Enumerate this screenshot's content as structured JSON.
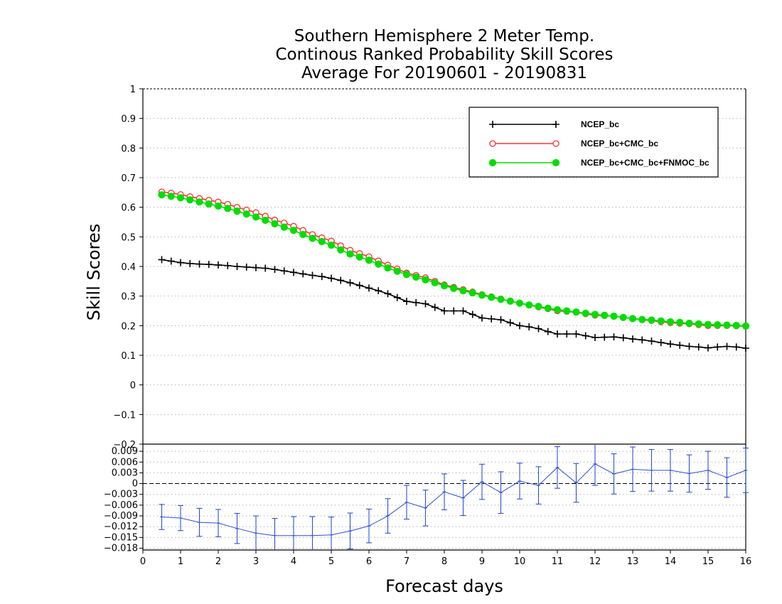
{
  "chart_data": {
    "type": "line",
    "title": [
      "Southern Hemisphere 2 Meter Temp.",
      "Continous Ranked Probability Skill Scores",
      "Average For 20190601 - 20190831"
    ],
    "xlabel": "Forecast days",
    "ylabel": "Skill Scores",
    "xlim": [
      0,
      16
    ],
    "ylim": [
      -0.2,
      1
    ],
    "x_ticks": [
      "0",
      "1",
      "2",
      "3",
      "4",
      "5",
      "6",
      "7",
      "8",
      "9",
      "10",
      "11",
      "12",
      "13",
      "14",
      "15",
      "16"
    ],
    "y_ticks": [
      "-0.2",
      "-0.1",
      "0",
      "0.1",
      "0.2",
      "0.3",
      "0.4",
      "0.5",
      "0.6",
      "0.7",
      "0.8",
      "0.9",
      "1"
    ],
    "grid": true,
    "legend_position": "top-right",
    "x": [
      0.5,
      0.75,
      1,
      1.25,
      1.5,
      1.75,
      2,
      2.25,
      2.5,
      2.75,
      3,
      3.25,
      3.5,
      3.75,
      4,
      4.25,
      4.5,
      4.75,
      5,
      5.25,
      5.5,
      5.75,
      6,
      6.25,
      6.5,
      6.75,
      7,
      7.25,
      7.5,
      7.75,
      8,
      8.25,
      8.5,
      8.75,
      9,
      9.25,
      9.5,
      9.75,
      10,
      10.25,
      10.5,
      10.75,
      11,
      11.25,
      11.5,
      11.75,
      12,
      12.25,
      12.5,
      12.75,
      13,
      13.25,
      13.5,
      13.75,
      14,
      14.25,
      14.5,
      14.75,
      15,
      15.25,
      15.5,
      15.75,
      16
    ],
    "series": [
      {
        "name": "NCEP_bc",
        "color": "#000000",
        "marker": "plus",
        "values": [
          0.423,
          0.418,
          0.413,
          0.41,
          0.408,
          0.407,
          0.405,
          0.403,
          0.4,
          0.398,
          0.396,
          0.394,
          0.39,
          0.385,
          0.38,
          0.375,
          0.37,
          0.366,
          0.36,
          0.353,
          0.345,
          0.336,
          0.327,
          0.318,
          0.308,
          0.295,
          0.282,
          0.278,
          0.274,
          0.262,
          0.25,
          0.25,
          0.25,
          0.238,
          0.226,
          0.223,
          0.22,
          0.21,
          0.2,
          0.196,
          0.19,
          0.18,
          0.172,
          0.172,
          0.172,
          0.166,
          0.16,
          0.161,
          0.162,
          0.159,
          0.155,
          0.152,
          0.148,
          0.143,
          0.138,
          0.134,
          0.13,
          0.128,
          0.125,
          0.128,
          0.13,
          0.128,
          0.124
        ]
      },
      {
        "name": "NCEP_bc+CMC_bc",
        "color": "#ff3030",
        "marker": "open-circle",
        "values": [
          0.652,
          0.648,
          0.643,
          0.636,
          0.63,
          0.624,
          0.618,
          0.61,
          0.6,
          0.591,
          0.582,
          0.57,
          0.557,
          0.547,
          0.536,
          0.522,
          0.508,
          0.497,
          0.486,
          0.47,
          0.455,
          0.444,
          0.433,
          0.419,
          0.405,
          0.392,
          0.378,
          0.37,
          0.362,
          0.35,
          0.338,
          0.33,
          0.322,
          0.314,
          0.305,
          0.298,
          0.29,
          0.283,
          0.276,
          0.27,
          0.263,
          0.257,
          0.25,
          0.248,
          0.245,
          0.24,
          0.235,
          0.234,
          0.232,
          0.228,
          0.224,
          0.22,
          0.217,
          0.213,
          0.21,
          0.208,
          0.206,
          0.203,
          0.2,
          0.2,
          0.2,
          0.199,
          0.198
        ]
      },
      {
        "name": "NCEP_bc+CMC_bc+FNMOC_bc",
        "color": "#00dd00",
        "marker": "filled-circle",
        "values": [
          0.642,
          0.637,
          0.632,
          0.625,
          0.618,
          0.611,
          0.604,
          0.596,
          0.587,
          0.577,
          0.567,
          0.556,
          0.544,
          0.533,
          0.522,
          0.508,
          0.495,
          0.484,
          0.472,
          0.456,
          0.442,
          0.432,
          0.421,
          0.408,
          0.395,
          0.384,
          0.373,
          0.364,
          0.355,
          0.345,
          0.335,
          0.326,
          0.318,
          0.311,
          0.303,
          0.296,
          0.289,
          0.283,
          0.276,
          0.27,
          0.265,
          0.259,
          0.254,
          0.25,
          0.246,
          0.242,
          0.238,
          0.235,
          0.232,
          0.228,
          0.224,
          0.221,
          0.219,
          0.216,
          0.213,
          0.211,
          0.208,
          0.206,
          0.204,
          0.203,
          0.202,
          0.201,
          0.199
        ]
      }
    ],
    "difference_panel": {
      "type": "line",
      "ylim": [
        -0.0185,
        0.011
      ],
      "y_ticks": [
        "-0.018",
        "-0.015",
        "-0.012",
        "-0.009",
        "-0.006",
        "-0.003",
        "0",
        "0.003",
        "0.006",
        "0.009"
      ],
      "color": "#3050d0",
      "x": [
        0.5,
        1,
        1.5,
        2,
        2.5,
        3,
        3.5,
        4,
        4.5,
        5,
        5.5,
        6,
        6.5,
        7,
        7.5,
        8,
        8.5,
        9,
        9.5,
        10,
        10.5,
        11,
        11.5,
        12,
        12.5,
        13,
        13.5,
        14,
        14.5,
        15,
        15.5,
        16
      ],
      "values": [
        -0.0093,
        -0.0096,
        -0.0108,
        -0.011,
        -0.0125,
        -0.0138,
        -0.0145,
        -0.0145,
        -0.0145,
        -0.0143,
        -0.0132,
        -0.0118,
        -0.009,
        -0.0052,
        -0.0068,
        -0.0023,
        -0.004,
        0.0005,
        -0.0025,
        0.0007,
        -0.0005,
        0.0045,
        0.0002,
        0.0055,
        0.0027,
        0.004,
        0.0037,
        0.0037,
        0.0028,
        0.0037,
        0.0017,
        0.0037
      ],
      "error_half": [
        0.0035,
        0.0035,
        0.0039,
        0.0038,
        0.0042,
        0.0048,
        0.0048,
        0.0053,
        0.0053,
        0.005,
        0.005,
        0.0047,
        0.0048,
        0.0047,
        0.005,
        0.005,
        0.0049,
        0.0049,
        0.0058,
        0.005,
        0.0052,
        0.0058,
        0.0054,
        0.006,
        0.0056,
        0.0062,
        0.0058,
        0.0058,
        0.0052,
        0.0053,
        0.0055,
        0.0062
      ]
    }
  }
}
